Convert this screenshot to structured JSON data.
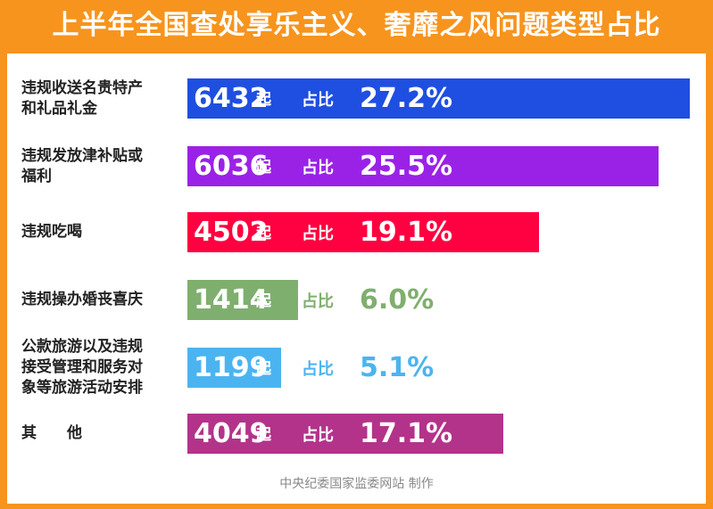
{
  "title": "上半年全国查处享乐主义、奢靡之风问题类型占比",
  "footer": "中央纪委国家监委网站 制作",
  "unit": "起",
  "share_label": "占比",
  "chart_data": {
    "type": "bar",
    "orientation": "horizontal",
    "title": "上半年全国查处享乐主义、奢靡之风问题类型占比",
    "categories": [
      "违规收送名贵特产和礼品礼金",
      "违规发放津补贴或福利",
      "违规吃喝",
      "违规操办婚丧喜庆",
      "公款旅游以及违规接受管理和服务对象等旅游活动安排",
      "其　他"
    ],
    "category_lines": [
      [
        "违规收送名贵特产",
        "和礼品礼金"
      ],
      [
        "违规发放津补贴或",
        "福利"
      ],
      [
        "违规吃喝"
      ],
      [
        "违规操办婚丧喜庆"
      ],
      [
        "公款旅游以及违规",
        "接受管理和服务对",
        "象等旅游活动安排"
      ],
      [
        "其　　他"
      ]
    ],
    "values": [
      6432,
      6036,
      4502,
      1414,
      1199,
      4049
    ],
    "value_labels": [
      "6432",
      "6036",
      "4502",
      "1414",
      "1199",
      "4049"
    ],
    "percent_labels": [
      "27.2%",
      "25.5%",
      "19.1%",
      "6.0%",
      "5.1%",
      "17.1%"
    ],
    "colors": [
      "#1f4fe0",
      "#9a22e6",
      "#ff0040",
      "#7faf6e",
      "#4bb4f0",
      "#b3338a"
    ],
    "text_on_bar_color": "#ffffff",
    "xlim": [
      0,
      6432
    ]
  }
}
